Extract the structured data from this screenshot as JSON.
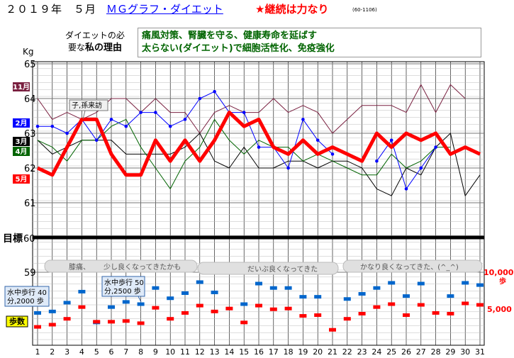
{
  "header": {
    "year_month": "２０１９年　５月",
    "title": "ＭＧグラフ・ダイエット",
    "motto": "★継続は力なり",
    "code": "(60-1106)"
  },
  "reason": {
    "label_line1": "ダイエットの必",
    "label_line2": "要な",
    "label_emph": "私の理由",
    "lines": [
      "痛風対策、腎臓を守る、健康寿命を延ばす",
      "太らない(ダイエット)で細胞活性化、免疫強化"
    ]
  },
  "colors": {
    "may": "#ff0000",
    "april": "#006400",
    "march": "#000000",
    "february": "#0000ff",
    "november": "#7a2040",
    "goal": "#000000",
    "steps_current": "#ff0000",
    "steps_previous": "#0066cc",
    "grid": "#bbbbbb"
  },
  "chart_data": {
    "type": "line",
    "title": "ＭＧグラフ・ダイエット",
    "y_unit": "Kg",
    "ylim": [
      59,
      65
    ],
    "y_ticks": [
      "59",
      "60",
      "61",
      "62",
      "63",
      "64",
      "65"
    ],
    "goal": {
      "label": "目標",
      "value": 60
    },
    "x": [
      "1",
      "2",
      "3",
      "4",
      "5",
      "6",
      "7",
      "8",
      "9",
      "10",
      "11",
      "12",
      "13",
      "14",
      "15",
      "16",
      "17",
      "18",
      "19",
      "20",
      "21",
      "22",
      "23",
      "24",
      "25",
      "26",
      "27",
      "28",
      "29",
      "30",
      "31"
    ],
    "series": [
      {
        "name": "5月",
        "values": [
          62.0,
          61.8,
          62.6,
          63.4,
          63.4,
          62.4,
          61.8,
          61.8,
          62.8,
          62.2,
          62.8,
          62.2,
          62.8,
          63.6,
          63.2,
          63.4,
          62.6,
          62.4,
          62.8,
          62.4,
          62.6,
          62.4,
          62.2,
          63.0,
          62.6,
          63.0,
          62.8,
          63.0,
          62.4,
          62.6,
          62.4
        ]
      },
      {
        "name": "4月",
        "values": [
          62.8,
          62.6,
          62.2,
          62.8,
          62.8,
          63.2,
          63.4,
          62.6,
          62.0,
          61.4,
          62.2,
          62.6,
          63.4,
          62.8,
          62.4,
          62.8,
          62.6,
          62.6,
          62.2,
          62.4,
          62.2,
          62.0,
          61.8,
          61.8,
          62.4,
          62.0,
          62.2,
          62.6,
          62.6,
          null,
          null
        ]
      },
      {
        "name": "3月",
        "values": [
          62.8,
          62.4,
          62.6,
          62.8,
          62.8,
          62.8,
          62.4,
          62.4,
          62.4,
          62.4,
          62.6,
          63.0,
          62.2,
          62.0,
          62.6,
          62.0,
          62.0,
          62.2,
          62.2,
          62.0,
          62.2,
          62.2,
          62.0,
          61.4,
          61.2,
          62.0,
          61.8,
          62.6,
          63.0,
          61.2,
          61.8
        ]
      },
      {
        "name": "2月",
        "values": [
          63.2,
          63.2,
          63.0,
          63.4,
          62.8,
          63.4,
          63.2,
          63.6,
          63.6,
          63.2,
          63.4,
          64.0,
          64.2,
          63.6,
          63.6,
          62.6,
          62.6,
          62.0,
          63.4,
          62.8,
          62.4,
          null,
          null,
          62.2,
          62.8,
          61.4,
          62.0,
          62.6,
          null,
          null,
          null
        ]
      },
      {
        "name": "11月",
        "values": [
          64.0,
          63.4,
          63.6,
          63.4,
          63.6,
          64.0,
          64.0,
          63.6,
          64.0,
          63.6,
          63.6,
          63.0,
          63.6,
          63.8,
          63.6,
          63.6,
          64.0,
          63.6,
          63.8,
          63.6,
          63.0,
          63.4,
          63.8,
          63.8,
          63.8,
          63.6,
          64.4,
          63.6,
          64.4,
          64.0,
          null
        ]
      }
    ],
    "steps": {
      "ylabel": "歩",
      "ticks": [
        "10,000",
        "5,000"
      ],
      "label": "歩数",
      "current": [
        2600,
        2900,
        3700,
        5300,
        3300,
        3300,
        3400,
        3100,
        5200,
        3700,
        4500,
        5500,
        4700,
        5100,
        3200,
        5500,
        5000,
        5100,
        4100,
        4200,
        2200,
        3700,
        4400,
        5300,
        5700,
        4200,
        5600,
        4500,
        4400,
        5800,
        5600
      ],
      "previous": [
        4500,
        4700,
        5900,
        7400,
        3200,
        5300,
        6000,
        5700,
        7900,
        6500,
        7200,
        8700,
        7300,
        null,
        5700,
        8500,
        7900,
        7900,
        6700,
        6700,
        null,
        6400,
        7100,
        7900,
        8600,
        6800,
        8500,
        null,
        6800,
        8600,
        8300
      ]
    },
    "annotations": [
      {
        "text": "子,孫来訪",
        "day": 6
      },
      {
        "text": "水中歩行 40分,2000 歩",
        "day": 1
      },
      {
        "text": "水中歩行 50分,2500 歩",
        "day": 7
      }
    ],
    "banners": [
      "膝痛、",
      "少し良くなってきたかも",
      "だいぶ良くなってきた",
      "かなり良くなってきた、(^_^)"
    ]
  }
}
